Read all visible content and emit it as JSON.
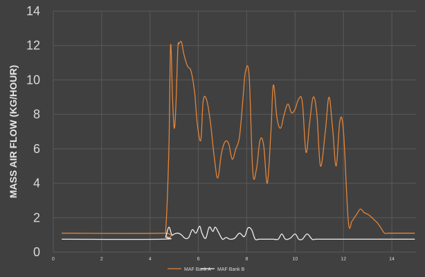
{
  "chart_data": {
    "type": "line",
    "title": "",
    "ylabel": "MASS AIR FLOW (KG/HOUR)",
    "xlabel": "",
    "xlim": [
      0,
      15
    ],
    "ylim": [
      0,
      14
    ],
    "xticks": [
      0,
      2,
      4,
      6,
      8,
      10,
      12,
      14
    ],
    "yticks": [
      0,
      2,
      4,
      6,
      8,
      10,
      12,
      14
    ],
    "grid": true,
    "legend": "bottom",
    "series": [
      {
        "name": "MAF Bank A",
        "color": "#e3853a",
        "x": [
          0.35,
          4.5,
          4.65,
          4.78,
          4.85,
          4.93,
          5.0,
          5.07,
          5.15,
          5.2,
          5.3,
          5.4,
          5.55,
          5.7,
          5.85,
          5.95,
          6.1,
          6.2,
          6.35,
          6.5,
          6.65,
          6.8,
          6.95,
          7.1,
          7.25,
          7.4,
          7.55,
          7.7,
          7.85,
          7.95,
          8.1,
          8.25,
          8.4,
          8.55,
          8.7,
          8.85,
          9.0,
          9.1,
          9.25,
          9.4,
          9.55,
          9.7,
          9.85,
          10.0,
          10.15,
          10.3,
          10.45,
          10.6,
          10.75,
          10.9,
          11.05,
          11.25,
          11.4,
          11.55,
          11.7,
          11.85,
          12.0,
          12.2,
          12.35,
          12.45,
          12.55,
          12.7,
          12.85,
          13.0,
          13.1,
          13.25,
          13.4,
          13.55,
          13.7,
          13.85,
          14.0,
          14.15,
          14.4,
          14.95
        ],
        "y": [
          1.1,
          1.1,
          1.3,
          6.0,
          12.0,
          9.0,
          7.2,
          8.5,
          11.8,
          12.1,
          12.2,
          11.5,
          10.8,
          10.5,
          9.2,
          7.5,
          6.5,
          8.8,
          8.8,
          7.5,
          5.6,
          4.3,
          5.7,
          6.4,
          6.3,
          5.4,
          6.0,
          6.7,
          9.0,
          10.5,
          10.2,
          4.7,
          4.8,
          6.5,
          6.2,
          4.0,
          7.0,
          9.7,
          7.8,
          7.2,
          8.0,
          8.6,
          8.1,
          8.3,
          8.9,
          8.7,
          5.8,
          7.5,
          9.0,
          8.0,
          5.0,
          7.0,
          9.0,
          7.2,
          5.0,
          7.6,
          7.0,
          1.8,
          1.8,
          2.0,
          2.2,
          2.5,
          2.3,
          2.2,
          2.1,
          1.9,
          1.7,
          1.4,
          1.1,
          1.1,
          1.1,
          1.1,
          1.1,
          1.1
        ]
      },
      {
        "name": "MAF Bank B",
        "color": "#f2f2f2",
        "x": [
          0.35,
          4.5,
          4.65,
          4.78,
          4.9,
          5.0,
          5.15,
          5.3,
          5.45,
          5.6,
          5.75,
          5.9,
          6.05,
          6.15,
          6.3,
          6.45,
          6.6,
          6.7,
          6.85,
          7.0,
          7.15,
          7.3,
          7.5,
          7.7,
          7.9,
          8.05,
          8.2,
          8.35,
          8.5,
          8.7,
          8.9,
          9.1,
          9.3,
          9.45,
          9.6,
          9.8,
          10.0,
          10.15,
          10.3,
          10.5,
          10.7,
          10.85,
          11.0,
          11.3,
          13.0,
          14.95
        ],
        "y": [
          0.75,
          0.75,
          0.9,
          1.45,
          1.0,
          1.05,
          1.1,
          1.0,
          0.8,
          0.85,
          1.3,
          1.1,
          1.5,
          1.1,
          0.8,
          1.45,
          1.2,
          1.45,
          1.1,
          0.75,
          0.85,
          0.75,
          0.8,
          1.1,
          0.9,
          1.4,
          1.3,
          0.75,
          0.75,
          0.75,
          0.75,
          0.75,
          0.75,
          1.05,
          0.75,
          0.8,
          1.05,
          0.75,
          0.75,
          1.05,
          0.75,
          0.75,
          0.75,
          0.75,
          0.75,
          0.75
        ]
      }
    ]
  }
}
